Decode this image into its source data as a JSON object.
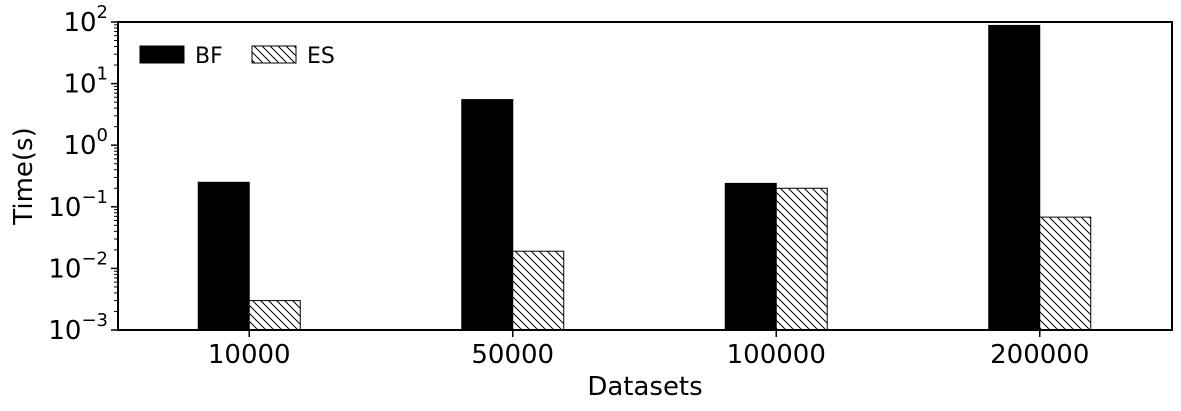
{
  "chart_data": {
    "type": "bar",
    "categories": [
      "10000",
      "50000",
      "100000",
      "200000"
    ],
    "series": [
      {
        "name": "BF",
        "values": [
          0.25,
          5.5,
          0.24,
          88
        ],
        "fill": "#000000",
        "pattern": "solid"
      },
      {
        "name": "ES",
        "values": [
          0.003,
          0.019,
          0.2,
          0.068
        ],
        "fill": "#ffffff",
        "pattern": "hatch"
      }
    ],
    "xlabel": "Datasets",
    "ylabel": "Time(s)",
    "yscale": "log",
    "ylim": [
      0.001,
      100
    ],
    "yticks": [
      {
        "base": "10",
        "exp": "−3",
        "value": 0.001
      },
      {
        "base": "10",
        "exp": "−2",
        "value": 0.01
      },
      {
        "base": "10",
        "exp": "−1",
        "value": 0.1
      },
      {
        "base": "10",
        "exp": "0",
        "value": 1
      },
      {
        "base": "10",
        "exp": "1",
        "value": 10
      },
      {
        "base": "10",
        "exp": "2",
        "value": 100
      }
    ],
    "legend_position": "top-left",
    "grid": false
  }
}
